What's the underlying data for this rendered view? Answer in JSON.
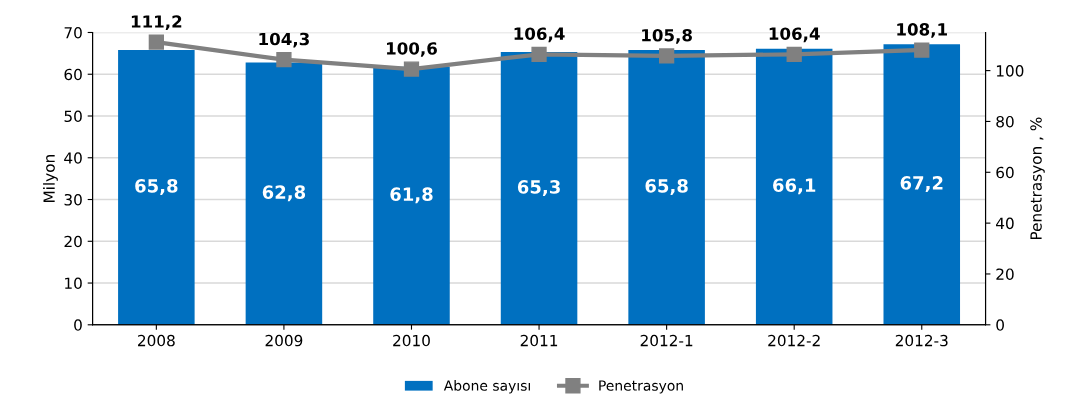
{
  "chart_data": {
    "type": "bar",
    "ylabel": "Milyon",
    "y2label": "Penetrasyon , %",
    "categories": [
      "2008",
      "2009",
      "2010",
      "2011",
      "2012-1",
      "2012-2",
      "2012-3"
    ],
    "series": [
      {
        "name": "Abone sayısı",
        "color": "#0070c0",
        "values": [
          65.8,
          62.8,
          61.8,
          65.3,
          65.8,
          66.1,
          67.2
        ],
        "value_labels": [
          "65,8",
          "62,8",
          "61,8",
          "65,3",
          "65,8",
          "66,1",
          "67,2"
        ]
      },
      {
        "name": "Penetrasyon",
        "type": "line",
        "axis": "y2",
        "color": "#808080",
        "marker": "square",
        "values": [
          111.2,
          104.3,
          100.6,
          106.4,
          105.8,
          106.4,
          108.1
        ],
        "value_labels": [
          "111,2",
          "104,3",
          "100,6",
          "106,4",
          "105,8",
          "106,4",
          "108,1"
        ]
      }
    ],
    "ylim": [
      0,
      70
    ],
    "yticks": [
      0,
      10,
      20,
      30,
      40,
      50,
      60,
      70
    ],
    "y2lim": [
      0,
      115
    ],
    "y2ticks": [
      0,
      20,
      40,
      60,
      80,
      100
    ],
    "grid": "y",
    "legend": "bottom"
  }
}
